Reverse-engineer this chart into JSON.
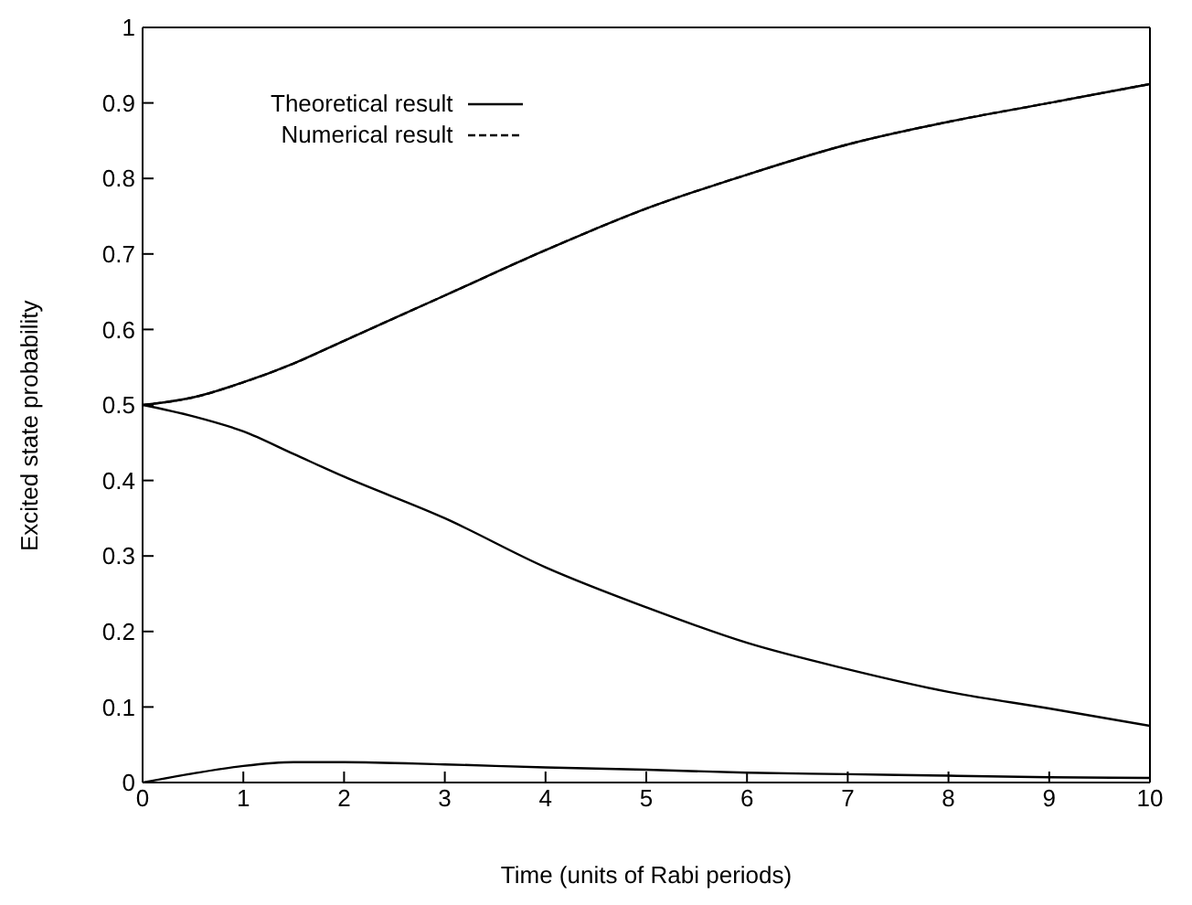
{
  "chart_data": {
    "type": "line",
    "xlabel": "Time (units of Rabi periods)",
    "ylabel": "Excited state probability",
    "x": [
      0,
      0.5,
      1,
      1.5,
      2,
      3,
      4,
      5,
      6,
      7,
      8,
      9,
      10
    ],
    "series": [
      {
        "name": "Theoretical result",
        "color": "#000000",
        "line_style": "solid",
        "values": [
          0.5,
          0.51,
          0.53,
          0.555,
          0.585,
          0.645,
          0.705,
          0.76,
          0.805,
          0.845,
          0.875,
          0.9,
          0.925
        ]
      },
      {
        "color": "#000000",
        "line_style": "solid",
        "values": [
          0.5,
          0.485,
          0.465,
          0.435,
          0.405,
          0.35,
          0.285,
          0.232,
          0.185,
          0.15,
          0.12,
          0.098,
          0.075
        ]
      },
      {
        "color": "#000000",
        "line_style": "solid",
        "values": [
          0,
          0.012,
          0.022,
          0.027,
          0.027,
          0.024,
          0.02,
          0.017,
          0.013,
          0.011,
          0.009,
          0.007,
          0.006
        ]
      },
      {
        "name": "Numerical result",
        "color": "#000000",
        "line_style": "dashed",
        "values": [
          0.5,
          0.51,
          0.53,
          0.555,
          0.585,
          0.645,
          0.705,
          0.76,
          0.805,
          0.845,
          0.875,
          0.9,
          0.925
        ]
      }
    ],
    "xlim": [
      0,
      10
    ],
    "xticks": [
      0,
      1,
      2,
      3,
      4,
      5,
      6,
      7,
      8,
      9,
      10
    ],
    "ylim": [
      0,
      1
    ],
    "yticks": [
      0,
      0.1,
      0.2,
      0.3,
      0.4,
      0.5,
      0.6,
      0.7,
      0.8,
      0.9,
      1
    ],
    "grid": false,
    "legend": "top left",
    "marker": "none"
  }
}
